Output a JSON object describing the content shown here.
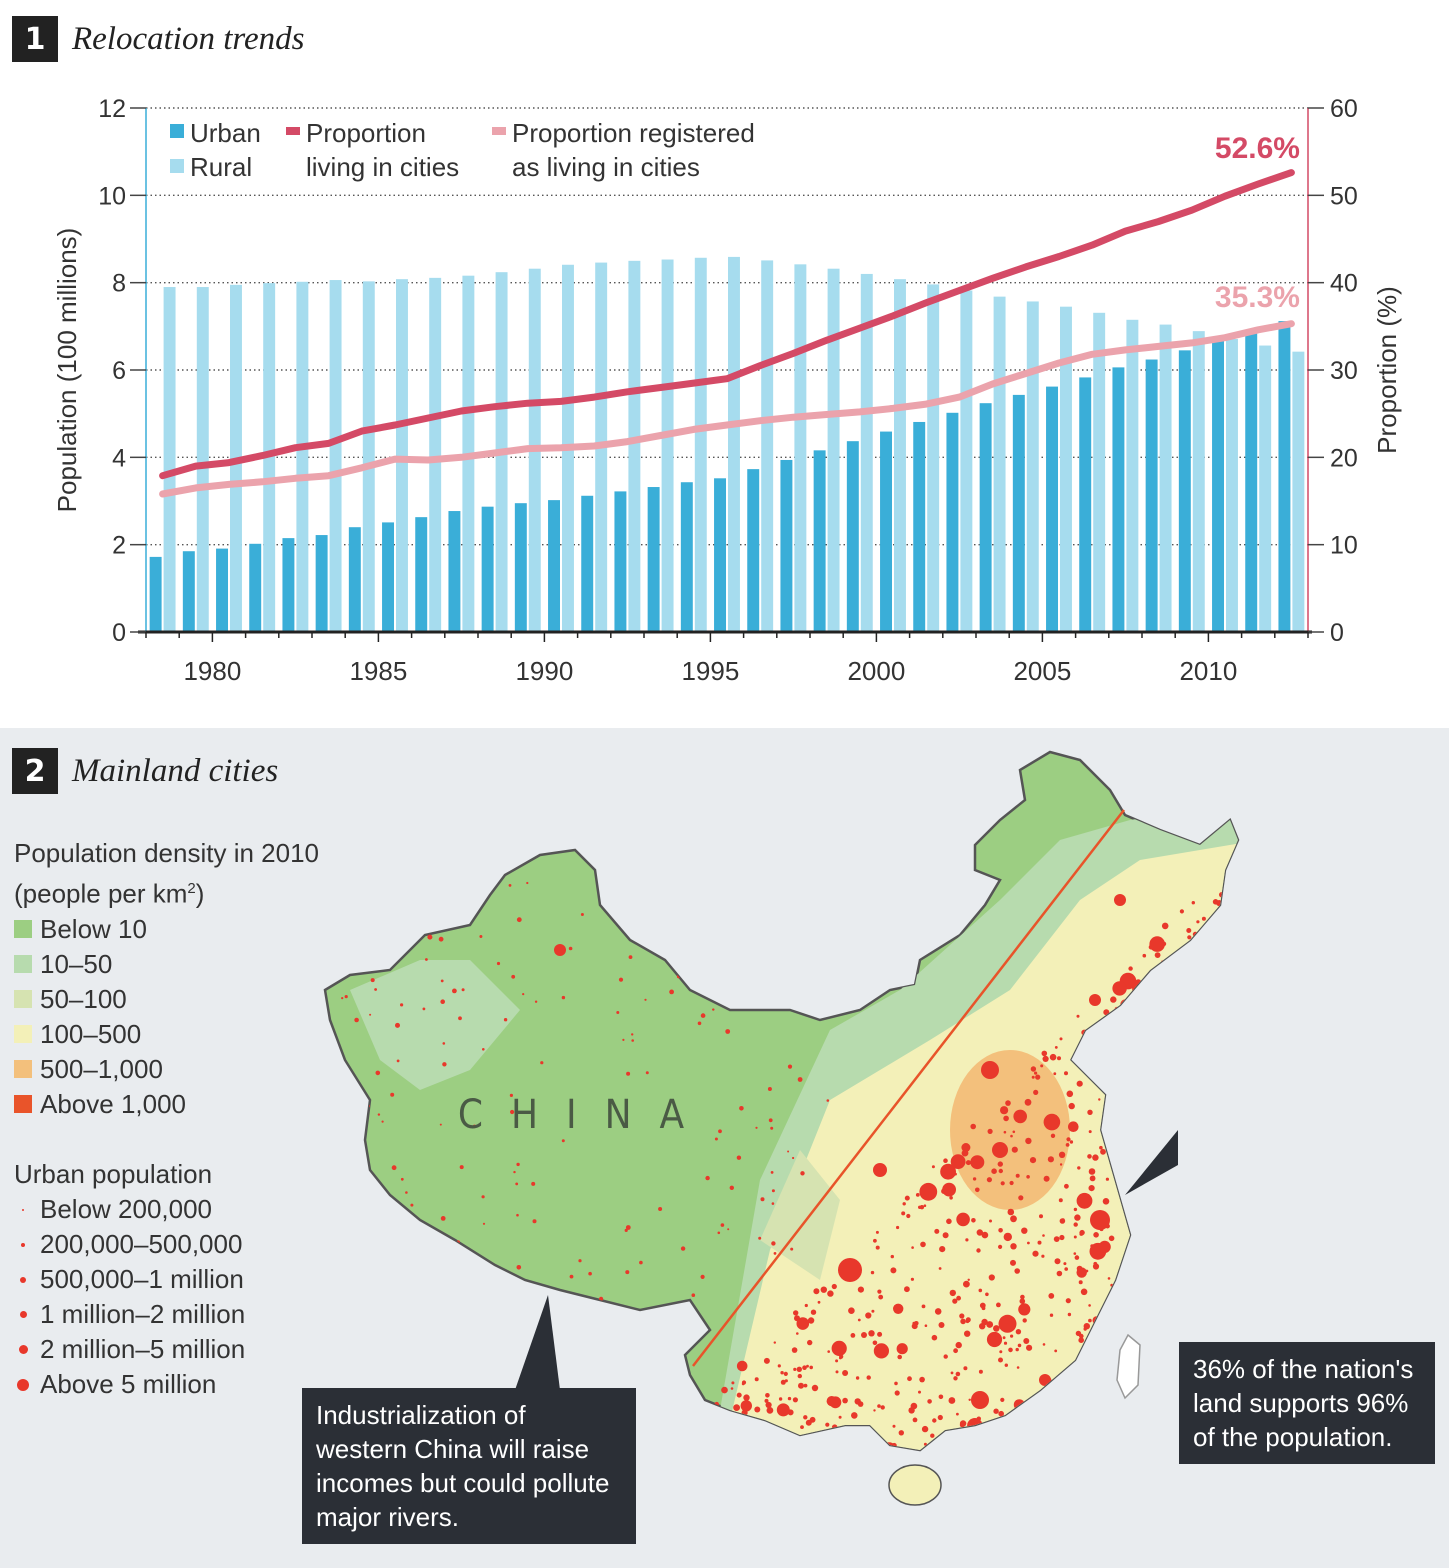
{
  "section1": {
    "number": "1",
    "title": "Relocation trends"
  },
  "section2": {
    "number": "2",
    "title": "Mainland cities"
  },
  "colors": {
    "urban": "#3aaed8",
    "rural": "#a6dcee",
    "proportion": "#d44a66",
    "registered": "#eba3ac",
    "annotation52": "#d44a66",
    "annotation35": "#eba3ac"
  },
  "chart_data": {
    "type": "bar",
    "x": [
      1978,
      1979,
      1980,
      1981,
      1982,
      1983,
      1984,
      1985,
      1986,
      1987,
      1988,
      1989,
      1990,
      1991,
      1992,
      1993,
      1994,
      1995,
      1996,
      1997,
      1998,
      1999,
      2000,
      2001,
      2002,
      2003,
      2004,
      2005,
      2006,
      2007,
      2008,
      2009,
      2010,
      2011,
      2012
    ],
    "x_ticks": [
      "1980",
      "1985",
      "1990",
      "1995",
      "2000",
      "2005",
      "2010"
    ],
    "x_tick_values": [
      1980,
      1985,
      1990,
      1995,
      2000,
      2005,
      2010
    ],
    "ylabel": "Population (100 millions)",
    "y2label": "Proportion (%)",
    "ylim": [
      0,
      12
    ],
    "y2lim": [
      0,
      60
    ],
    "y_ticks": [
      "0",
      "2",
      "4",
      "6",
      "8",
      "10",
      "12"
    ],
    "y2_ticks": [
      "0",
      "10",
      "20",
      "30",
      "40",
      "50",
      "60"
    ],
    "grid": true,
    "legend": {
      "urban": "Urban",
      "rural": "Rural",
      "proportion_line1": "Proportion",
      "proportion_line2": "living in cities",
      "registered_line1": "Proportion registered",
      "registered_line2": "as living in cities"
    },
    "series": [
      {
        "name": "Urban",
        "kind": "bar",
        "values": [
          1.72,
          1.85,
          1.91,
          2.02,
          2.15,
          2.22,
          2.4,
          2.51,
          2.63,
          2.77,
          2.87,
          2.95,
          3.02,
          3.12,
          3.22,
          3.32,
          3.43,
          3.52,
          3.73,
          3.94,
          4.16,
          4.37,
          4.59,
          4.81,
          5.02,
          5.24,
          5.43,
          5.62,
          5.83,
          6.06,
          6.24,
          6.45,
          6.7,
          6.91,
          7.12
        ]
      },
      {
        "name": "Rural",
        "kind": "bar",
        "values": [
          7.9,
          7.9,
          7.95,
          7.99,
          8.02,
          8.06,
          8.03,
          8.08,
          8.11,
          8.16,
          8.24,
          8.32,
          8.41,
          8.46,
          8.5,
          8.53,
          8.57,
          8.59,
          8.51,
          8.42,
          8.32,
          8.2,
          8.08,
          7.96,
          7.82,
          7.68,
          7.57,
          7.45,
          7.31,
          7.15,
          7.04,
          6.89,
          6.71,
          6.56,
          6.42
        ]
      },
      {
        "name": "Proportion living in cities",
        "kind": "line",
        "axis": "right",
        "values": [
          17.9,
          19.0,
          19.4,
          20.2,
          21.1,
          21.6,
          23.0,
          23.7,
          24.5,
          25.3,
          25.8,
          26.2,
          26.4,
          26.9,
          27.5,
          28.0,
          28.5,
          29.0,
          30.5,
          31.9,
          33.4,
          34.8,
          36.2,
          37.7,
          39.1,
          40.5,
          41.8,
          43.0,
          44.3,
          45.9,
          47.0,
          48.3,
          49.9,
          51.3,
          52.6
        ]
      },
      {
        "name": "Proportion registered as living in cities",
        "kind": "line",
        "axis": "right",
        "values": [
          15.8,
          16.5,
          16.9,
          17.2,
          17.6,
          17.9,
          18.8,
          19.8,
          19.7,
          20.0,
          20.5,
          21.0,
          21.1,
          21.3,
          21.8,
          22.5,
          23.2,
          23.7,
          24.2,
          24.6,
          24.9,
          25.2,
          25.6,
          26.1,
          26.9,
          28.4,
          29.6,
          30.8,
          31.8,
          32.3,
          32.7,
          33.1,
          33.7,
          34.6,
          35.3
        ]
      }
    ],
    "annotations": {
      "end_proportion": "52.6%",
      "end_registered": "35.3%"
    }
  },
  "map": {
    "legend_density_title_line1": "Population density in 2010",
    "legend_density_title_line2_pre": "(people per km",
    "legend_density_title_line2_sup": "2",
    "legend_density_title_line2_post": ")",
    "density_items": [
      {
        "label": "Below 10",
        "color": "#9cce82"
      },
      {
        "label": "10–50",
        "color": "#b7dbae"
      },
      {
        "label": "50–100",
        "color": "#d6e3b1"
      },
      {
        "label": "100–500",
        "color": "#f3f0b8"
      },
      {
        "label": "500–1,000",
        "color": "#f3c07c"
      },
      {
        "label": "Above 1,000",
        "color": "#e9542a"
      }
    ],
    "legend_urban_title": "Urban population",
    "urban_items": [
      {
        "label": "Below 200,000",
        "dot": 2
      },
      {
        "label": "200,000–500,000",
        "dot": 4
      },
      {
        "label": "500,000–1 million",
        "dot": 6
      },
      {
        "label": "1 million–2 million",
        "dot": 7
      },
      {
        "label": "2 million–5 million",
        "dot": 9
      },
      {
        "label": "Above 5 million",
        "dot": 12
      }
    ],
    "country_label": "CHINA",
    "callout_east": "36% of the nation's land supports 96% of the population.",
    "callout_west": "Industrialization of western China will raise incomes but could pollute major rivers."
  }
}
